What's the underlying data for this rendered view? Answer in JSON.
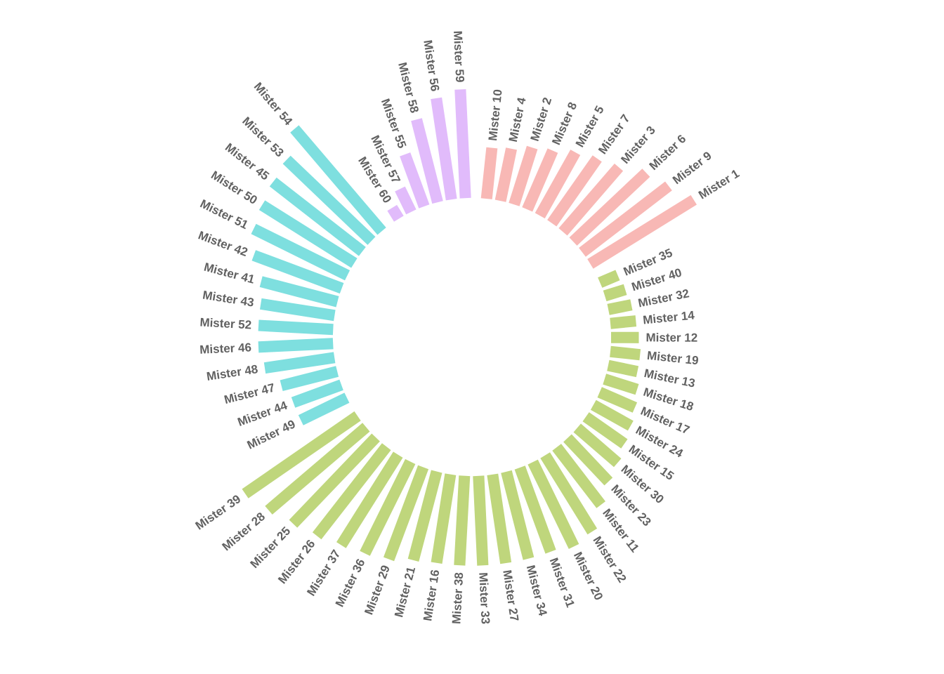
{
  "chart_data": {
    "type": "bar",
    "coordinate_system": "polar",
    "sort": "descending within group",
    "grid": false,
    "legend": "none",
    "value_scale": "relative (no axis printed)",
    "groups": [
      {
        "color": "#f8b8b5",
        "categories": [
          "Mister 10",
          "Mister 4",
          "Mister 2",
          "Mister 8",
          "Mister 5",
          "Mister 7",
          "Mister 3",
          "Mister 6",
          "Mister 9",
          "Mister 1"
        ],
        "values": [
          24,
          25,
          28,
          30,
          34,
          37,
          40,
          47,
          51,
          57
        ]
      },
      {
        "color": "#bfd67c",
        "categories": [
          "Mister 35",
          "Mister 40",
          "Mister 32",
          "Mister 14",
          "Mister 12",
          "Mister 19",
          "Mister 13",
          "Mister 18",
          "Mister 17",
          "Mister 24",
          "Mister 15",
          "Mister 30",
          "Mister 23",
          "Mister 11",
          "Mister 22",
          "Mister 20",
          "Mister 31",
          "Mister 34",
          "Mister 27",
          "Mister 33",
          "Mister 38",
          "Mister 16",
          "Mister 21",
          "Mister 29",
          "Mister 36",
          "Mister 37",
          "Mister 26",
          "Mister 25",
          "Mister 28",
          "Mister 39"
        ],
        "values": [
          9,
          10,
          11,
          12,
          13,
          14,
          14,
          16,
          18,
          20,
          22,
          25,
          28,
          34,
          42,
          44,
          42,
          42,
          42,
          42,
          42,
          42,
          43,
          46,
          48,
          50,
          53,
          56,
          60,
          64
        ]
      },
      {
        "color": "#7edfdf",
        "categories": [
          "Mister 49",
          "Mister 44",
          "Mister 47",
          "Mister 48",
          "Mister 46",
          "Mister 52",
          "Mister 43",
          "Mister 41",
          "Mister 42",
          "Mister 51",
          "Mister 50",
          "Mister 45",
          "Mister 53",
          "Mister 54"
        ],
        "values": [
          24,
          24,
          27,
          33,
          35,
          35,
          35,
          37,
          44,
          49,
          51,
          53,
          55,
          63
        ]
      },
      {
        "color": "#e1bbfb",
        "categories": [
          "Mister 60",
          "Mister 57",
          "Mister 55",
          "Mister 58",
          "Mister 56",
          "Mister 59"
        ],
        "values": [
          6,
          12,
          26,
          40,
          48,
          51
        ]
      }
    ]
  }
}
